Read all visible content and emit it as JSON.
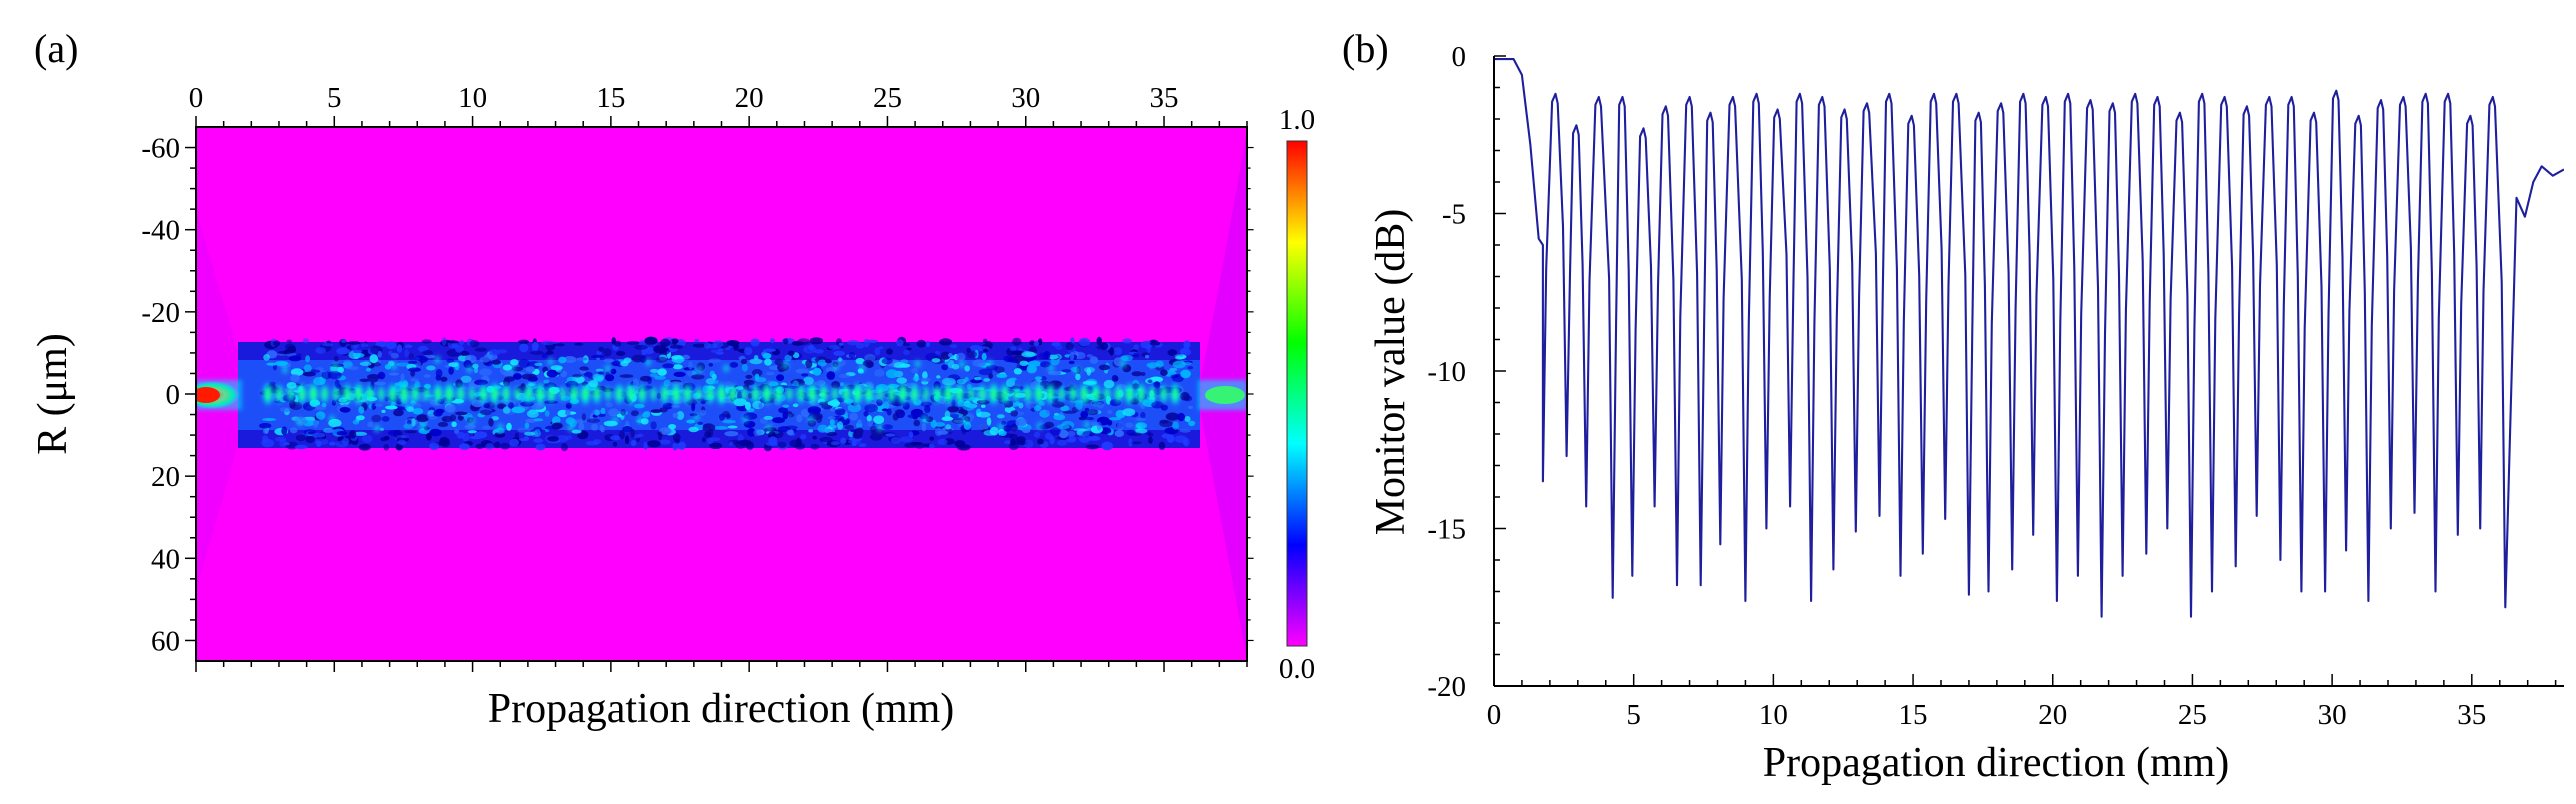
{
  "chart_data": [
    {
      "panel_label": "(a)",
      "type": "heatmap",
      "title": "",
      "xlabel": "Propagation direction (mm)",
      "ylabel": "R (μm)",
      "xlim": [
        0,
        38
      ],
      "ylim": [
        -65,
        65
      ],
      "x_ticks": [
        0,
        5,
        10,
        15,
        20,
        25,
        30,
        35
      ],
      "y_ticks": [
        -60,
        -40,
        -20,
        0,
        20,
        40,
        60
      ],
      "y_tick_labels": [
        "-60",
        "-40",
        "-20",
        "0",
        "20",
        "40",
        "60"
      ],
      "core_half_width_um": 13,
      "colorbar": {
        "min": 0.0,
        "max": 1.0,
        "min_label": "0.0",
        "max_label": "1.0",
        "colors": [
          "#ff00ff",
          "#0000ff",
          "#00ffff",
          "#00ff00",
          "#ffff00",
          "#ff0000"
        ]
      },
      "background_color": "#ff00ff"
    },
    {
      "panel_label": "(b)",
      "type": "line",
      "title": "",
      "xlabel": "Propagation direction (mm)",
      "ylabel": "Monitor value (dB)",
      "xlim": [
        0,
        38.3
      ],
      "ylim": [
        -20,
        0
      ],
      "x_ticks": [
        0,
        5,
        10,
        15,
        20,
        25,
        30,
        35
      ],
      "y_ticks": [
        0,
        -5,
        -10,
        -15,
        -20
      ],
      "line_color": "#1f1f9e",
      "series": [
        {
          "name": "Monitor value",
          "start": [
            [
              0,
              -0.1
            ],
            [
              0.3,
              -0.1
            ],
            [
              0.7,
              -0.1
            ],
            [
              1.0,
              -0.6
            ],
            [
              1.3,
              -2.8
            ],
            [
              1.6,
              -5.8
            ],
            [
              1.75,
              -6.0
            ]
          ],
          "dip_x": [
            1.75,
            2.6,
            3.3,
            4.25,
            4.95,
            5.75,
            6.55,
            7.4,
            8.1,
            9.0,
            9.75,
            10.6,
            11.35,
            12.15,
            12.95,
            13.8,
            14.55,
            15.35,
            16.15,
            17.0,
            17.7,
            18.55,
            19.3,
            20.15,
            20.9,
            21.75,
            22.5,
            23.35,
            24.1,
            24.95,
            25.7,
            26.55,
            27.3,
            28.15,
            28.9,
            29.75,
            30.5,
            31.3,
            32.1,
            32.95,
            33.7,
            34.5,
            35.3,
            36.2
          ],
          "dip_y": [
            -13.5,
            -12.7,
            -14.3,
            -17.2,
            -16.5,
            -14.3,
            -16.8,
            -16.8,
            -15.5,
            -17.3,
            -15.0,
            -14.3,
            -17.3,
            -16.3,
            -15.1,
            -14.6,
            -16.5,
            -15.8,
            -14.7,
            -17.1,
            -17.0,
            -16.3,
            -15.2,
            -17.3,
            -16.5,
            -17.8,
            -16.5,
            -15.8,
            -15.0,
            -17.8,
            -17.0,
            -16.2,
            -14.6,
            -16.0,
            -17.0,
            -17.0,
            -15.7,
            -17.3,
            -15.0,
            -14.5,
            -17.0,
            -15.2,
            -15.0,
            -17.5
          ],
          "peak_x": [
            2.2,
            2.95,
            3.75,
            4.6,
            5.35,
            6.15,
            7.0,
            7.75,
            8.55,
            9.4,
            10.15,
            10.95,
            11.75,
            12.55,
            13.35,
            14.15,
            14.95,
            15.75,
            16.55,
            17.35,
            18.15,
            18.95,
            19.75,
            20.55,
            21.35,
            22.15,
            22.95,
            23.75,
            24.55,
            25.35,
            26.15,
            26.95,
            27.75,
            28.55,
            29.35,
            30.15,
            30.95,
            31.75,
            32.55,
            33.35,
            34.15,
            34.95,
            35.75
          ],
          "peak_y": [
            -1.2,
            -2.2,
            -1.3,
            -1.3,
            -2.3,
            -1.6,
            -1.3,
            -1.8,
            -1.3,
            -1.2,
            -1.7,
            -1.2,
            -1.3,
            -1.7,
            -1.5,
            -1.2,
            -1.9,
            -1.2,
            -1.2,
            -1.8,
            -1.5,
            -1.2,
            -1.3,
            -1.2,
            -1.4,
            -1.5,
            -1.2,
            -1.3,
            -1.8,
            -1.2,
            -1.3,
            -1.6,
            -1.3,
            -1.3,
            -1.8,
            -1.1,
            -1.9,
            -1.4,
            -1.3,
            -1.2,
            -1.2,
            -1.9,
            -1.3
          ],
          "tail": [
            [
              36.6,
              -4.5
            ],
            [
              36.9,
              -5.1
            ],
            [
              37.2,
              -4.0
            ],
            [
              37.5,
              -3.5
            ],
            [
              37.9,
              -3.8
            ],
            [
              38.3,
              -3.6
            ]
          ]
        }
      ]
    }
  ]
}
